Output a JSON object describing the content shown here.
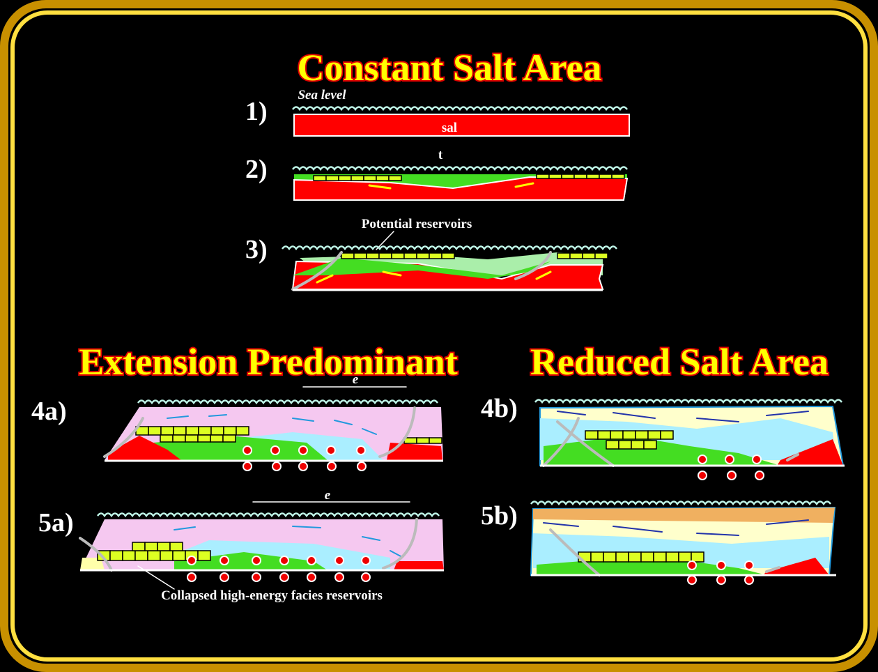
{
  "titles": {
    "top": "Constant Salt Area",
    "left": "Extension Predominant",
    "right": "Reduced Salt Area"
  },
  "panels": [
    {
      "label": "1)",
      "notes": [
        "Sea level",
        "sal"
      ]
    },
    {
      "label": "2)",
      "notes": [
        "t"
      ]
    },
    {
      "label": "3)",
      "notes": [
        "Potential reservoirs"
      ]
    },
    {
      "label": "4a)",
      "notes": [
        "e"
      ]
    },
    {
      "label": "4b)",
      "notes": []
    },
    {
      "label": "5a)",
      "notes": [
        "e",
        "Collapsed high-energy facies reservoirs"
      ]
    },
    {
      "label": "5b)",
      "notes": []
    }
  ]
}
